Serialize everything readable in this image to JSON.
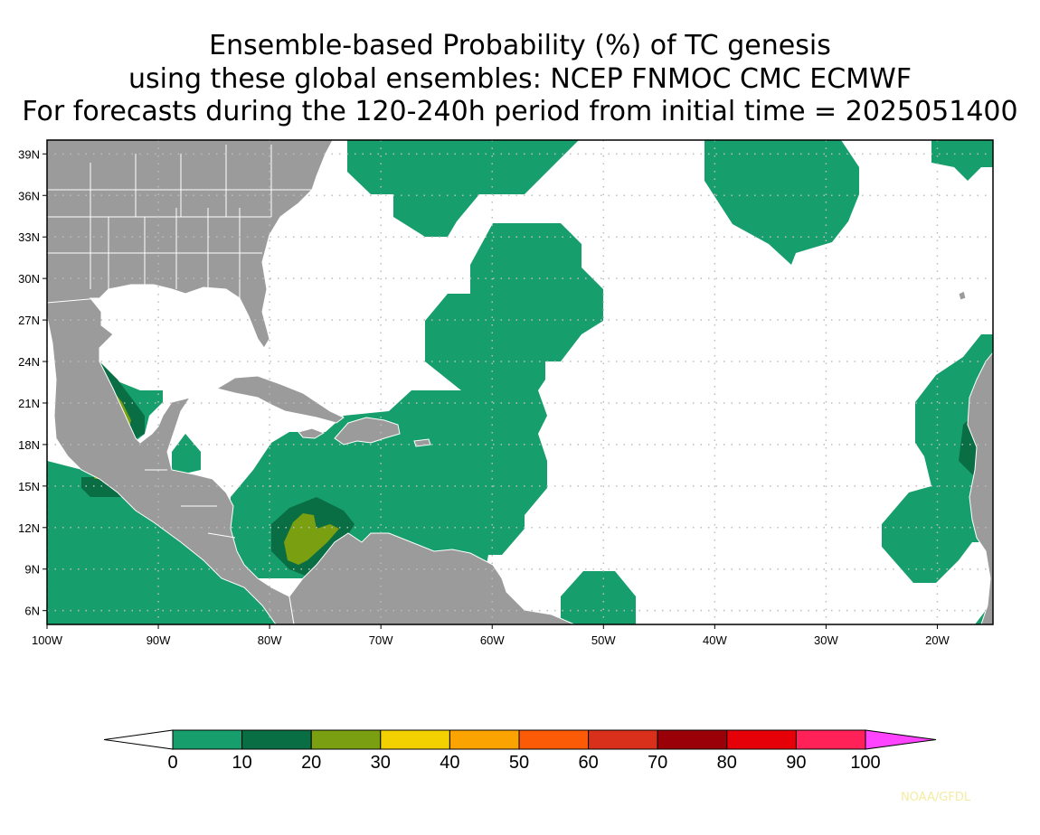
{
  "title": {
    "line1": "Ensemble-based Probability (%) of TC genesis",
    "line2": "using these global ensembles:   NCEP FNMOC CMC ECMWF",
    "line3": "For forecasts during the 120-240h period from initial time = 2025051400"
  },
  "map": {
    "lon_range": [
      -100,
      -15
    ],
    "lat_range": [
      5,
      40
    ],
    "lat_ticks": [
      "39N",
      "36N",
      "33N",
      "30N",
      "27N",
      "24N",
      "21N",
      "18N",
      "15N",
      "12N",
      "9N",
      "6N"
    ],
    "lon_ticks": [
      "100W",
      "90W",
      "80W",
      "70W",
      "60W",
      "50W",
      "40W",
      "30W",
      "20W"
    ],
    "grid": "dotted",
    "land_color": "#9b9b9b",
    "ocean_color": "#ffffff"
  },
  "colorbar": {
    "labels": [
      "0",
      "10",
      "20",
      "30",
      "40",
      "50",
      "60",
      "70",
      "80",
      "90",
      "100"
    ],
    "colors": [
      "#169e6c",
      "#0a6e44",
      "#7a9f10",
      "#f3d000",
      "#fba300",
      "#fb5a06",
      "#d8301a",
      "#9a0008",
      "#e60008",
      "#ff2158"
    ],
    "below_color": "#ffffff",
    "above_color": "#ff44ff"
  },
  "credit": "NOAA/GFDL"
}
